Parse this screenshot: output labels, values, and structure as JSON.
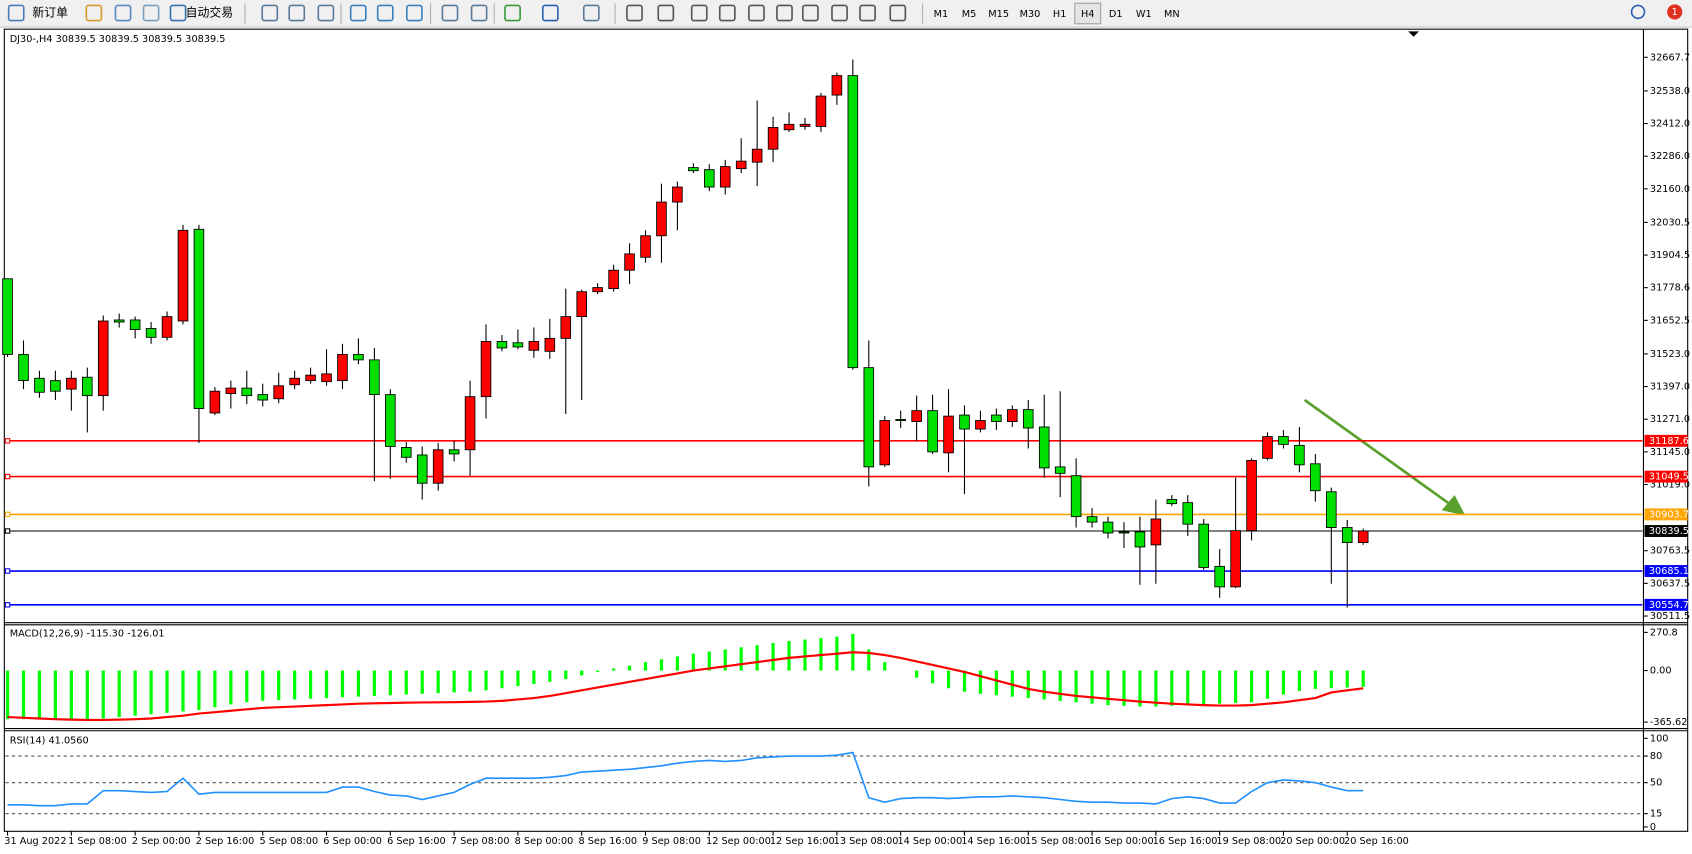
{
  "toolbar": {
    "new_order": "新订单",
    "auto_trading": "自动交易",
    "timeframes": [
      "M1",
      "M5",
      "M15",
      "M30",
      "H1",
      "H4",
      "D1",
      "W1",
      "MN"
    ],
    "active_timeframe": "H4",
    "notifications": 1
  },
  "chart_data": [
    {
      "type": "candlestick",
      "title": "DJ30-,H4  30839.5 30839.5 30839.5 30839.5",
      "categories": [
        "31 Aug 2022",
        null,
        null,
        null,
        "1 Sep 08:00",
        null,
        null,
        null,
        "2 Sep 00:00",
        null,
        null,
        null,
        "2 Sep 16:00",
        null,
        null,
        null,
        "5 Sep 08:00",
        null,
        null,
        null,
        "6 Sep 00:00",
        null,
        null,
        null,
        "6 Sep 16:00",
        null,
        null,
        null,
        "7 Sep 08:00",
        null,
        null,
        null,
        "8 Sep 00:00",
        null,
        null,
        null,
        "8 Sep 16:00",
        null,
        null,
        null,
        "9 Sep 08:00",
        null,
        null,
        null,
        "12 Sep 00:00",
        null,
        null,
        null,
        "12 Sep 16:00",
        null,
        null,
        null,
        "13 Sep 08:00",
        null,
        null,
        null,
        "14 Sep 00:00",
        null,
        null,
        null,
        "14 Sep 16:00",
        null,
        null,
        null,
        "15 Sep 08:00",
        null,
        null,
        null,
        "16 Sep 00:00",
        null,
        null,
        null,
        "16 Sep 16:00",
        null,
        null,
        null,
        "19 Sep 08:00",
        null,
        null,
        null,
        "20 Sep 00:00",
        null,
        null,
        null,
        "20 Sep 16:00",
        null
      ],
      "open": [
        31813,
        31521,
        31429,
        31420,
        31387,
        31433,
        31362,
        31654,
        31654,
        31621,
        31587,
        31650,
        32004,
        31295,
        31370,
        31391,
        31366,
        31350,
        31404,
        31420,
        31416,
        31420,
        31521,
        31500,
        31366,
        31162,
        31133,
        31024,
        31153,
        31153,
        31358,
        31571,
        31566,
        31537,
        31533,
        31583,
        31667,
        31763,
        31775,
        31846,
        31896,
        31979,
        32109,
        32242,
        32234,
        32167,
        32238,
        32263,
        32313,
        32388,
        32401,
        32401,
        32522,
        32597,
        31470,
        31095,
        31270,
        31262,
        31304,
        31141,
        31287,
        31233,
        31287,
        31262,
        31308,
        31241,
        31087,
        31053,
        30895,
        30874,
        30836,
        30836,
        30786,
        30961,
        30949,
        30866,
        30703,
        30624,
        30841,
        31120,
        31204,
        31170,
        31099,
        30991,
        30853,
        30795
      ],
      "high": [
        31813,
        31575,
        31458,
        31458,
        31458,
        31470,
        31671,
        31679,
        31667,
        31646,
        31687,
        32021,
        32021,
        31395,
        31420,
        31458,
        31408,
        31450,
        31458,
        31470,
        31541,
        31562,
        31583,
        31546,
        31387,
        31183,
        31166,
        31179,
        31187,
        31420,
        31637,
        31596,
        31617,
        31625,
        31658,
        31775,
        31771,
        31796,
        31867,
        31950,
        32000,
        32180,
        32188,
        32259,
        32255,
        32272,
        32355,
        32501,
        32438,
        32455,
        32434,
        32530,
        32609,
        32659,
        31575,
        31283,
        31304,
        31362,
        31366,
        31387,
        31324,
        31304,
        31312,
        31324,
        31345,
        31366,
        31379,
        31120,
        30928,
        30895,
        30874,
        30895,
        30961,
        30978,
        30978,
        30886,
        30770,
        31045,
        31120,
        31220,
        31229,
        31241,
        31137,
        31007,
        30882,
        30849
      ],
      "low": [
        31512,
        31387,
        31354,
        31345,
        31304,
        31220,
        31304,
        31625,
        31583,
        31562,
        31575,
        31637,
        31179,
        31287,
        31312,
        31329,
        31320,
        31333,
        31387,
        31408,
        31400,
        31387,
        31483,
        31032,
        31041,
        31103,
        30961,
        30995,
        31108,
        31053,
        31274,
        31533,
        31541,
        31508,
        31504,
        31291,
        31345,
        31754,
        31763,
        31792,
        31875,
        31875,
        32000,
        32221,
        32151,
        32138,
        32221,
        32171,
        32263,
        32380,
        32388,
        32380,
        32484,
        31462,
        31012,
        31087,
        31237,
        31187,
        31137,
        31066,
        30982,
        31220,
        31229,
        31241,
        31158,
        31045,
        30970,
        30853,
        30853,
        30811,
        30774,
        30632,
        30636,
        30936,
        30820,
        30690,
        30582,
        30619,
        30803,
        31112,
        31158,
        31066,
        30953,
        30636,
        30544,
        30786
      ],
      "close": [
        31521,
        31420,
        31375,
        31379,
        31429,
        31362,
        31650,
        31646,
        31617,
        31587,
        31667,
        32000,
        31312,
        31379,
        31391,
        31362,
        31345,
        31400,
        31429,
        31441,
        31446,
        31521,
        31500,
        31366,
        31166,
        31124,
        31024,
        31153,
        31137,
        31358,
        31571,
        31546,
        31550,
        31571,
        31583,
        31667,
        31763,
        31779,
        31846,
        31909,
        31979,
        32109,
        32167,
        32230,
        32167,
        32246,
        32267,
        32313,
        32397,
        32409,
        32409,
        32518,
        32597,
        31470,
        31087,
        31266,
        31266,
        31304,
        31145,
        31283,
        31233,
        31266,
        31262,
        31308,
        31237,
        31083,
        31062,
        30895,
        30874,
        30832,
        30832,
        30778,
        30886,
        30945,
        30866,
        30699,
        30624,
        30841,
        31112,
        31204,
        31174,
        31095,
        30995,
        30853,
        30795,
        30839.5
      ],
      "up_color": "#ff0000",
      "down_color": "#00e000",
      "ylim": [
        30490,
        32772
      ],
      "yticks": [
        32667.7,
        {
          "value": 32538,
          "label": "32538.0"
        },
        {
          "value": 32412,
          "label": "32412.0"
        },
        {
          "value": 32286,
          "label": "32286.0"
        },
        {
          "value": 32160,
          "label": "32160.0"
        },
        32030.5,
        31904.5,
        31778.6,
        31652.5,
        {
          "value": 31523,
          "label": "31523.0"
        },
        {
          "value": 31397,
          "label": "31397.0"
        },
        {
          "value": 31271,
          "label": "31271.0"
        },
        {
          "value": 31145,
          "label": "31145.0"
        },
        {
          "value": 31019,
          "label": "31019.0"
        },
        30763.5,
        30637.5,
        30511.5
      ],
      "hlines": [
        {
          "value": 31187.6,
          "color": "#ff0000"
        },
        {
          "value": 31049.5,
          "color": "#ff0000"
        },
        {
          "value": 30903.7,
          "color": "#ffa500"
        },
        {
          "value": 30839.5,
          "color": "#000000"
        },
        {
          "value": 30685.1,
          "color": "#0000ff"
        },
        {
          "value": 30554.7,
          "color": "#0000ff"
        }
      ],
      "grid": false
    },
    {
      "type": "macd",
      "title": "MACD(12,26,9) -115.30 -126.01",
      "values": [
        -345,
        -345,
        -345,
        -345,
        -345,
        -345,
        -340,
        -330,
        -320,
        -310,
        -300,
        -290,
        -280,
        -260,
        -240,
        -225,
        -215,
        -210,
        -205,
        -200,
        -195,
        -190,
        -185,
        -180,
        -175,
        -170,
        -165,
        -160,
        -155,
        -150,
        -140,
        -125,
        -110,
        -95,
        -80,
        -60,
        -35,
        -10,
        15,
        35,
        60,
        80,
        100,
        120,
        135,
        150,
        165,
        180,
        195,
        210,
        220,
        230,
        240,
        260,
        150,
        60,
        0,
        -50,
        -90,
        -125,
        -150,
        -165,
        -175,
        -185,
        -195,
        -205,
        -215,
        -225,
        -235,
        -245,
        -250,
        -255,
        -255,
        -250,
        -245,
        -240,
        -235,
        -230,
        -225,
        -200,
        -170,
        -145,
        -130,
        -125,
        -120,
        -115.3
      ],
      "color": "#00ff00",
      "signal": {
        "color": "#ff0000",
        "values": [
          -330,
          -335,
          -340,
          -345,
          -348,
          -350,
          -350,
          -348,
          -345,
          -340,
          -330,
          -320,
          -305,
          -295,
          -285,
          -275,
          -265,
          -260,
          -255,
          -250,
          -245,
          -240,
          -235,
          -232,
          -230,
          -228,
          -226,
          -225,
          -224,
          -222,
          -220,
          -215,
          -205,
          -195,
          -180,
          -160,
          -140,
          -120,
          -100,
          -80,
          -60,
          -40,
          -20,
          0,
          15,
          30,
          45,
          60,
          75,
          90,
          100,
          110,
          120,
          130,
          125,
          110,
          90,
          65,
          40,
          15,
          -10,
          -40,
          -70,
          -100,
          -130,
          -150,
          -165,
          -180,
          -190,
          -200,
          -210,
          -220,
          -228,
          -235,
          -240,
          -245,
          -248,
          -248,
          -245,
          -235,
          -225,
          -210,
          -195,
          -155,
          -140,
          -126.01
        ]
      },
      "ylim": [
        -365.62,
        270.8
      ],
      "yticks": [
        270.8,
        {
          "value": 0,
          "label": "0.00"
        },
        -365.62
      ]
    },
    {
      "type": "line",
      "title": "RSI(14) 41.0560",
      "values": [
        25,
        25,
        24,
        24,
        26,
        26,
        41,
        41,
        40,
        39,
        40,
        55,
        37,
        39,
        39,
        39,
        39,
        39,
        39,
        39,
        39,
        45,
        45,
        40,
        36,
        35,
        31,
        35,
        39,
        48,
        55,
        55,
        55,
        55,
        56,
        58,
        62,
        63,
        64,
        65,
        67,
        69,
        72,
        74,
        75,
        74,
        75,
        78,
        79,
        80,
        80,
        80,
        81,
        84,
        33,
        28,
        32,
        33,
        33,
        32,
        33,
        34,
        34,
        35,
        34,
        33,
        31,
        29,
        28,
        28,
        27,
        27,
        26,
        32,
        34,
        32,
        27,
        27,
        40,
        50,
        53,
        52,
        50,
        45,
        41,
        41.056
      ],
      "color": "#1e90ff",
      "ylim": [
        0,
        100
      ],
      "yticks": [
        100,
        80,
        50,
        15,
        0
      ]
    }
  ]
}
